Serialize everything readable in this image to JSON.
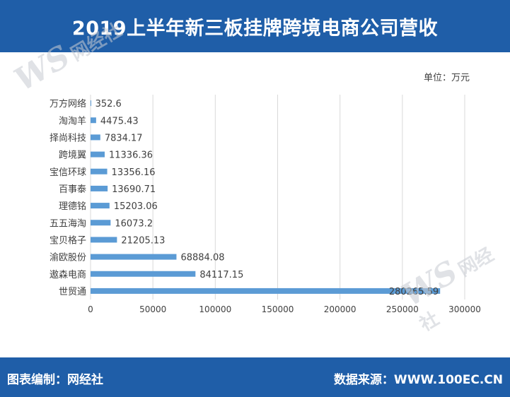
{
  "header": {
    "title": "2019上半年新三板挂牌跨境电商公司营收"
  },
  "unit_label": "单位：万元",
  "footer": {
    "left": "图表编制：网经社",
    "right": "数据来源：WWW.100EC.CN"
  },
  "watermark": {
    "logo": "WS",
    "name": "网经社"
  },
  "colors": {
    "header_bg": "#1f5ea8",
    "bar": "#5b9bd5",
    "grid": "#d9d9d9",
    "text": "#404040"
  },
  "chart_data": {
    "type": "bar",
    "orientation": "horizontal",
    "title": "2019上半年新三板挂牌跨境电商公司营收",
    "unit": "单位：万元",
    "categories": [
      "万方网络",
      "淘淘羊",
      "择尚科技",
      "跨境翼",
      "宝信环球",
      "百事泰",
      "理德铭",
      "五五海淘",
      "宝贝格子",
      "渝欧股份",
      "遨森电商",
      "世贸通"
    ],
    "values": [
      352.6,
      4475.43,
      7834.17,
      11336.36,
      13356.16,
      13690.71,
      15203.06,
      16073.2,
      21205.13,
      68884.08,
      84117.15,
      280265.59
    ],
    "value_labels": [
      "352.6",
      "4475.43",
      "7834.17",
      "11336.36",
      "13356.16",
      "13690.71",
      "15203.06",
      "16073.2",
      "21205.13",
      "68884.08",
      "84117.15",
      "280265.59"
    ],
    "xlim": [
      0,
      300000
    ],
    "xticks": [
      0,
      50000,
      100000,
      150000,
      200000,
      250000,
      300000
    ],
    "xtick_labels": [
      "0",
      "50000",
      "100000",
      "150000",
      "200000",
      "250000",
      "300000"
    ],
    "grid": "vertical",
    "legend": "none"
  }
}
